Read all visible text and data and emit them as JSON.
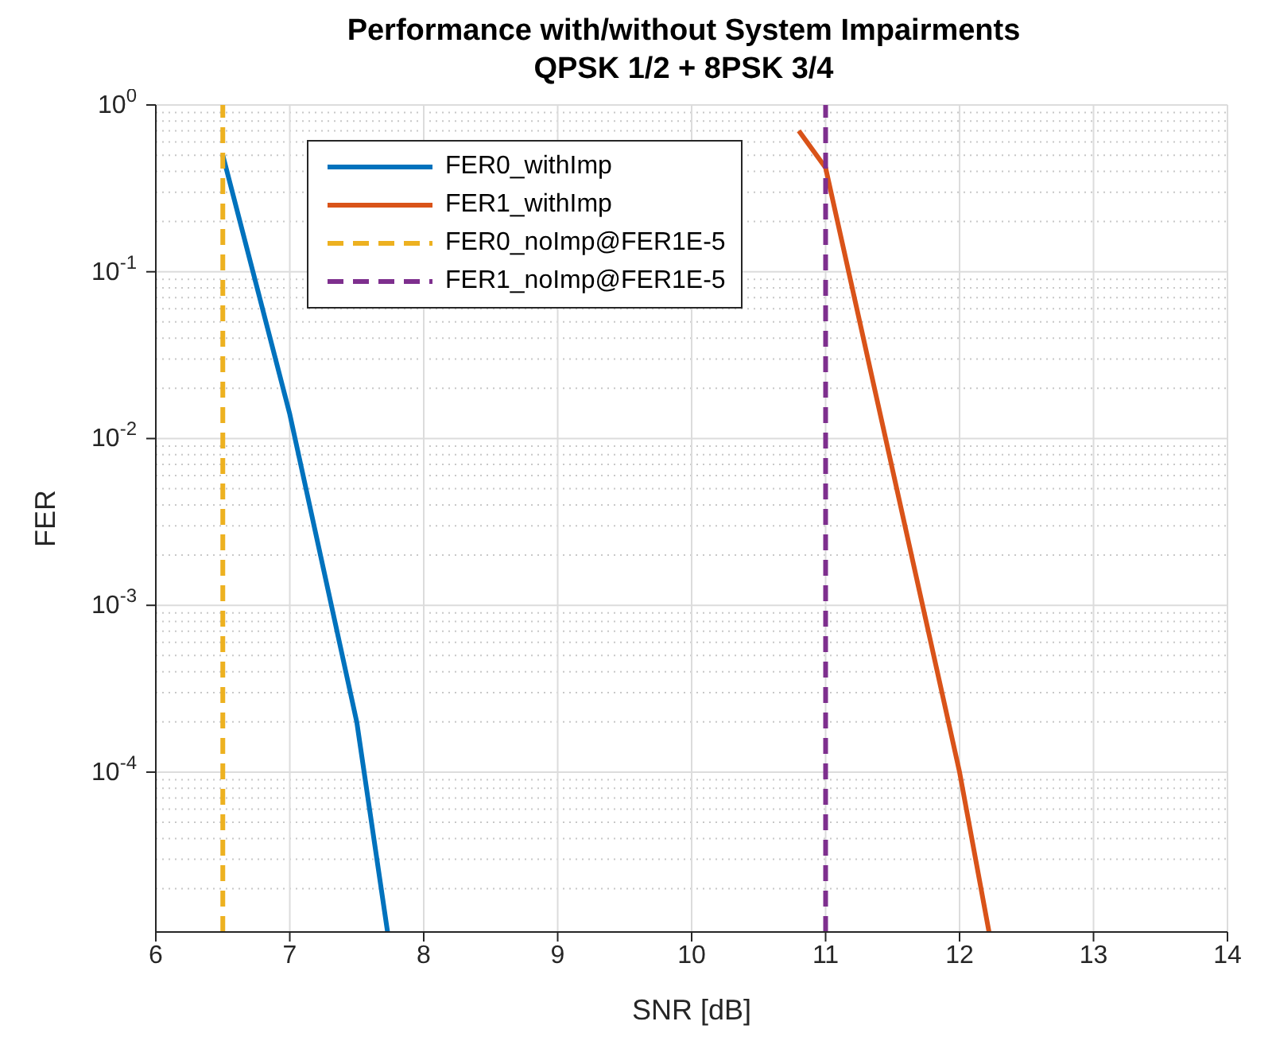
{
  "chart_data": {
    "type": "line",
    "title": "Performance with/without System Impairments",
    "subtitle": "QPSK 1/2 + 8PSK 3/4",
    "xlabel": "SNR [dB]",
    "ylabel": "FER",
    "log": "y",
    "grid": true,
    "legend": "top left",
    "xlim": [
      6,
      14
    ],
    "xticks": [
      6,
      7,
      8,
      9,
      10,
      11,
      12,
      13,
      14
    ],
    "ylim": [
      1.1e-05,
      1
    ],
    "yticks": [
      {
        "value": 1,
        "label": "10$^{0}$"
      },
      {
        "value": 0.1,
        "label": "10$^{-1}$"
      },
      {
        "value": 0.01,
        "label": "10$^{-2}$"
      },
      {
        "value": 0.001,
        "label": "10$^{-3}$"
      },
      {
        "value": 0.0001,
        "label": "10$^{-4}$"
      }
    ],
    "series": [
      {
        "name": "FER0_withImp",
        "color": "#0072bd",
        "line_style": "solid",
        "x": [
          6.5,
          7,
          7.5,
          7.73
        ],
        "values": [
          0.5,
          0.014,
          0.0002,
          1.1e-05
        ]
      },
      {
        "name": "FER1_withImp",
        "color": "#d95319",
        "line_style": "solid",
        "x": [
          10.8,
          11,
          12,
          12.22
        ],
        "values": [
          0.7,
          0.42,
          0.0001,
          1.1e-05
        ]
      },
      {
        "name": "FER0_noImp@FER1E-5",
        "color": "#edb120",
        "line_style": "dashed",
        "x": [
          6.5,
          6.5
        ],
        "values": [
          1.1e-05,
          1
        ]
      },
      {
        "name": "FER1_noImp@FER1E-5",
        "color": "#7e2f8e",
        "line_style": "dashed",
        "x": [
          11,
          11
        ],
        "values": [
          1.1e-05,
          1
        ]
      }
    ]
  }
}
